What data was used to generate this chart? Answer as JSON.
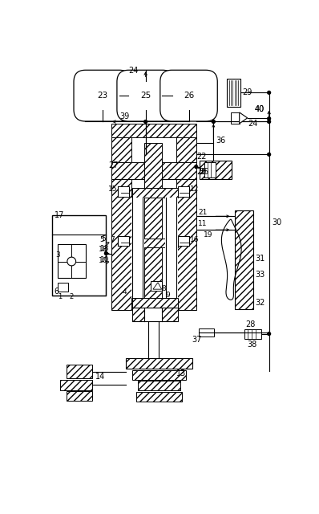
{
  "fig_width": 3.98,
  "fig_height": 6.4,
  "dpi": 100,
  "bg": "#ffffff"
}
